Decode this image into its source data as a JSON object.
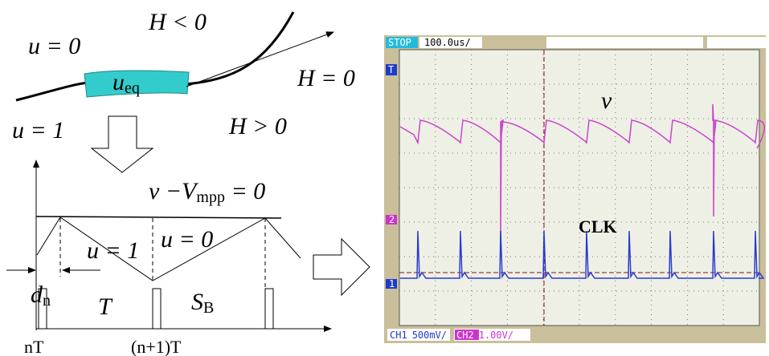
{
  "top_diagram": {
    "h_negative": "H < 0",
    "u_zero": "u = 0",
    "u_eq": {
      "base": "u",
      "sub": "eq"
    },
    "h_zero": "H = 0",
    "u_one": "u = 1",
    "h_positive": "H > 0"
  },
  "timing_diagram": {
    "condition": {
      "lead": "v −V",
      "sub": "mpp",
      "tail": " = 0"
    },
    "u_one": "u = 1",
    "u_zero": "u = 0",
    "d_n": {
      "base": "d",
      "sub": "n"
    },
    "period": "T",
    "s_b": {
      "base": "S",
      "sub": "B"
    },
    "x_labels": [
      "nT",
      "(n+1)T"
    ]
  },
  "oscilloscope": {
    "status": "STOP",
    "timebase": "100.0us/",
    "trace_v": "v",
    "trace_clk": "CLK",
    "ch1": "CH1",
    "ch1_scale": "500mV/",
    "ch2": "CH2",
    "ch2_scale": "1.00V/",
    "markers": [
      "T",
      "2",
      "1"
    ]
  }
}
